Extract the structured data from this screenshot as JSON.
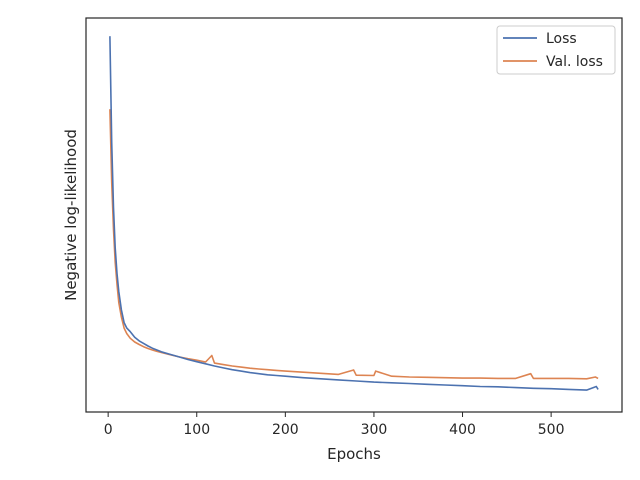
{
  "chart_data": {
    "type": "line",
    "title": "",
    "xlabel": "Epochs",
    "ylabel": "Negative log-likelihood",
    "xlim": [
      -25,
      580
    ],
    "x_ticks": [
      0,
      100,
      200,
      300,
      400,
      500
    ],
    "y_tick_labels_shown": false,
    "grid": false,
    "legend_position": "top-right",
    "series": [
      {
        "name": "Loss",
        "color": "#4c72b0",
        "x": [
          2,
          4,
          6,
          8,
          10,
          12,
          15,
          18,
          21,
          25,
          30,
          35,
          40,
          45,
          50,
          55,
          60,
          70,
          80,
          90,
          100,
          110,
          120,
          130,
          140,
          150,
          160,
          170,
          180,
          190,
          200,
          220,
          240,
          260,
          280,
          300,
          320,
          340,
          360,
          380,
          400,
          420,
          440,
          460,
          480,
          500,
          520,
          540,
          551,
          553
        ],
        "y": [
          1.0,
          0.71,
          0.53,
          0.42,
          0.35,
          0.3,
          0.25,
          0.215,
          0.2,
          0.19,
          0.175,
          0.165,
          0.158,
          0.151,
          0.145,
          0.14,
          0.135,
          0.128,
          0.121,
          0.114,
          0.108,
          0.102,
          0.096,
          0.091,
          0.086,
          0.082,
          0.078,
          0.075,
          0.072,
          0.07,
          0.068,
          0.064,
          0.061,
          0.058,
          0.055,
          0.052,
          0.05,
          0.048,
          0.046,
          0.044,
          0.042,
          0.04,
          0.039,
          0.037,
          0.035,
          0.034,
          0.032,
          0.03,
          0.04,
          0.032
        ]
      },
      {
        "name": "Val. loss",
        "color": "#dd8452",
        "x": [
          2,
          4,
          6,
          8,
          10,
          12,
          15,
          18,
          21,
          25,
          30,
          35,
          40,
          45,
          50,
          55,
          60,
          70,
          80,
          90,
          100,
          110,
          117,
          120,
          130,
          140,
          150,
          160,
          170,
          180,
          190,
          200,
          220,
          240,
          260,
          277,
          280,
          300,
          302,
          320,
          340,
          360,
          380,
          400,
          420,
          440,
          460,
          477,
          480,
          500,
          520,
          540,
          550,
          553
        ],
        "y": [
          0.8,
          0.6,
          0.47,
          0.38,
          0.32,
          0.27,
          0.23,
          0.2,
          0.185,
          0.172,
          0.162,
          0.155,
          0.149,
          0.144,
          0.14,
          0.136,
          0.133,
          0.127,
          0.121,
          0.116,
          0.112,
          0.107,
          0.125,
          0.104,
          0.1,
          0.096,
          0.093,
          0.09,
          0.088,
          0.086,
          0.084,
          0.082,
          0.079,
          0.076,
          0.073,
          0.085,
          0.071,
          0.07,
          0.082,
          0.068,
          0.066,
          0.065,
          0.064,
          0.063,
          0.063,
          0.062,
          0.062,
          0.075,
          0.062,
          0.062,
          0.062,
          0.061,
          0.066,
          0.062
        ]
      }
    ]
  }
}
